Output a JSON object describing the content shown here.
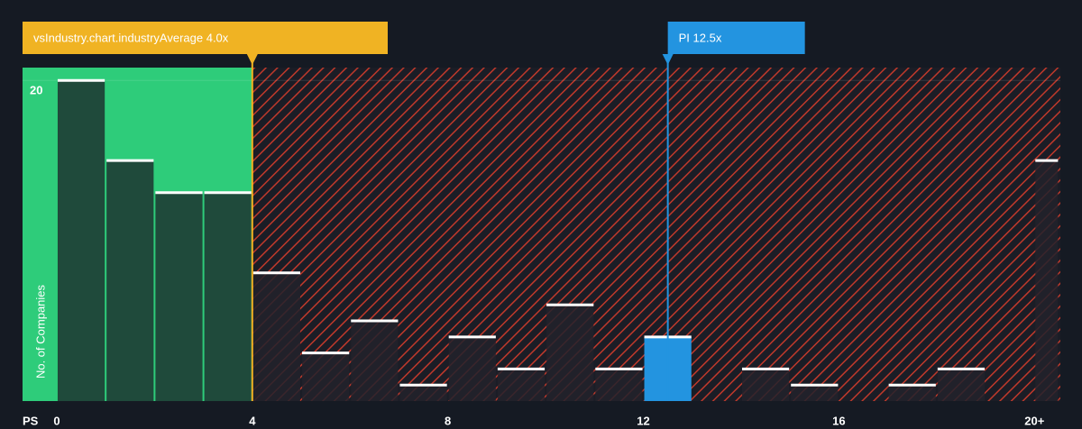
{
  "chart_data": {
    "type": "histogram",
    "x_label": "PS",
    "y_label": "No. of Companies",
    "bins": [
      0,
      1,
      2,
      3,
      4,
      5,
      6,
      7,
      8,
      9,
      10,
      11,
      12,
      13,
      14,
      15,
      16,
      17,
      18,
      19,
      20,
      20.5
    ],
    "values": [
      20,
      15,
      13,
      13,
      8,
      3,
      5,
      1,
      4,
      2,
      6,
      2,
      4,
      0,
      2,
      1,
      0,
      1,
      2,
      0,
      15
    ],
    "colors": [
      "#1f4a3b",
      "#1f4a3b",
      "#1f4a3b",
      "#1f4a3b",
      "#22222c",
      "#22222c",
      "#22222c",
      "#22222c",
      "#22222c",
      "#22222c",
      "#22222c",
      "#22222c",
      "#2394e0",
      "#22222c",
      "#22222c",
      "#22222c",
      "#22222c",
      "#22222c",
      "#22222c",
      "#22222c",
      "#22222c"
    ],
    "xlim": [
      -0.7,
      20.53
    ],
    "ylim": [
      0,
      20.8
    ],
    "xticks": [
      0,
      4,
      8,
      12,
      16,
      {
        "value": 20,
        "label": "20+"
      }
    ],
    "yticks": [
      20
    ],
    "annotations": [
      {
        "label": "vsIndustry.chart.industryAverage 4.0x",
        "value": 4.0,
        "color": "#f0b323"
      },
      {
        "label": "PI 12.5x",
        "value": 12.5,
        "color": "#2394e0"
      }
    ],
    "below_color": "#2ecc7a",
    "above_color": "#c0392b"
  }
}
